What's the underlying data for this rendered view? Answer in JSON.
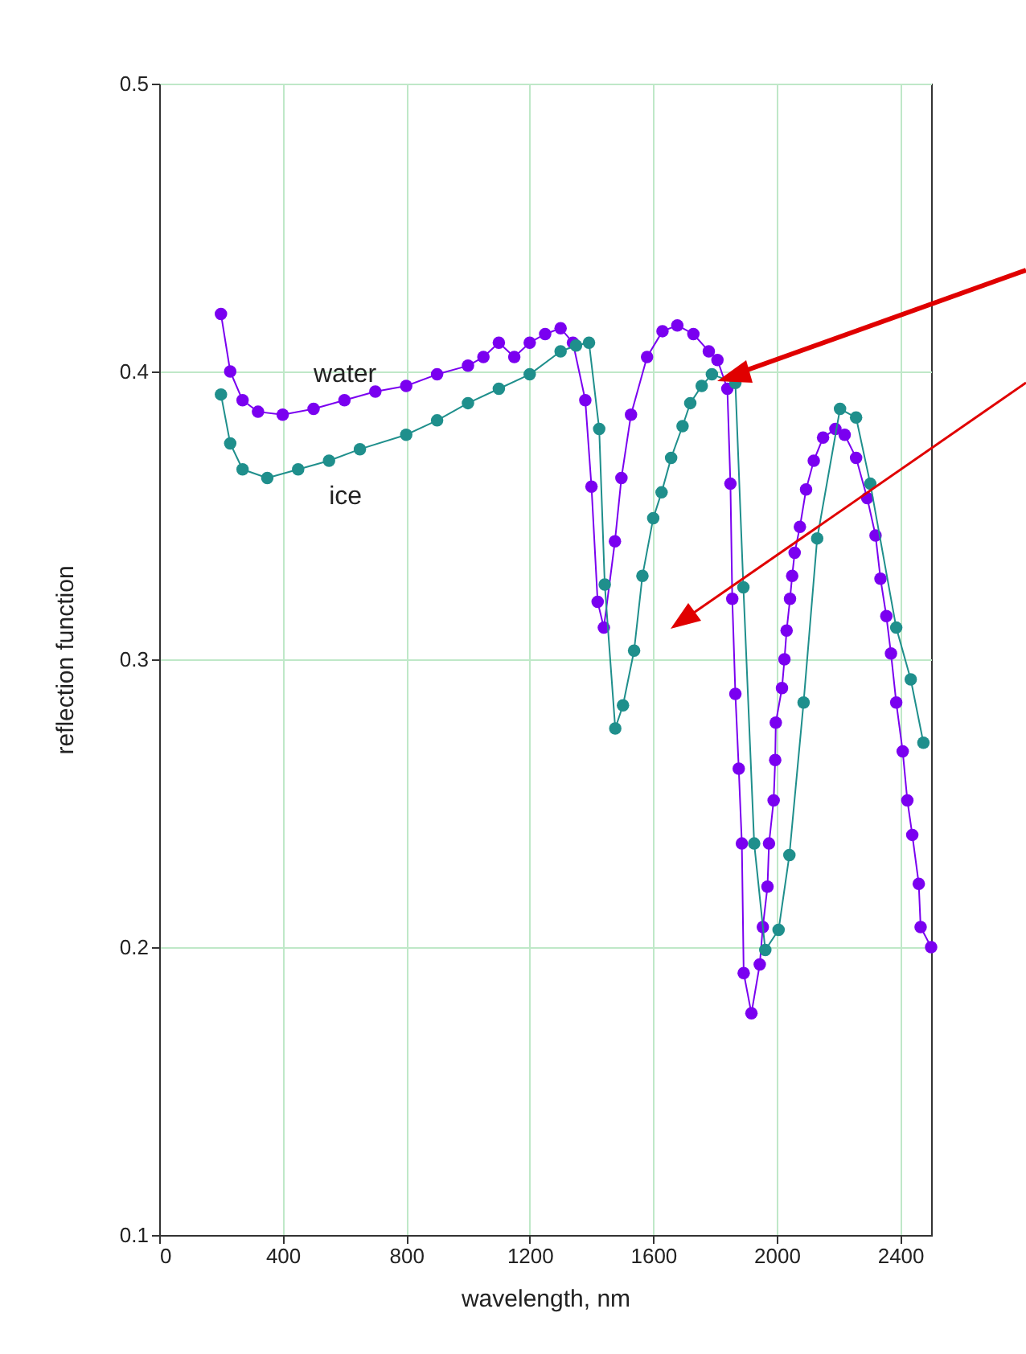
{
  "chart_data": {
    "type": "line",
    "xlabel": "wavelength, nm",
    "ylabel": "reflection function",
    "xlim": [
      0,
      2500
    ],
    "ylim": [
      0.1,
      0.5
    ],
    "xticks": [
      0,
      400,
      800,
      1200,
      1600,
      2000,
      2400
    ],
    "yticks": [
      0.1,
      0.2,
      0.3,
      0.4,
      0.5
    ],
    "grid": true,
    "marker": "circle",
    "line_style": "solid",
    "series": [
      {
        "name": "water",
        "color": "#7a00f0",
        "x": [
          200,
          230,
          270,
          320,
          400,
          500,
          600,
          700,
          800,
          900,
          1000,
          1050,
          1100,
          1150,
          1200,
          1250,
          1300,
          1340,
          1380,
          1400,
          1420,
          1440,
          1476,
          1497,
          1528,
          1580,
          1630,
          1678,
          1730,
          1780,
          1808,
          1840,
          1850,
          1856,
          1866,
          1877,
          1887,
          1893,
          1918,
          1945,
          1955,
          1970,
          1975,
          1990,
          1995,
          1997,
          2017,
          2025,
          2032,
          2043,
          2050,
          2058,
          2075,
          2095,
          2120,
          2150,
          2190,
          2220,
          2257,
          2293,
          2320,
          2336,
          2355,
          2370,
          2387,
          2408,
          2423,
          2439,
          2460,
          2466,
          2500
        ],
        "values": [
          0.42,
          0.4,
          0.39,
          0.386,
          0.385,
          0.387,
          0.39,
          0.393,
          0.395,
          0.399,
          0.402,
          0.405,
          0.41,
          0.405,
          0.41,
          0.413,
          0.415,
          0.41,
          0.39,
          0.36,
          0.32,
          0.311,
          0.341,
          0.363,
          0.385,
          0.405,
          0.414,
          0.416,
          0.413,
          0.407,
          0.404,
          0.394,
          0.361,
          0.321,
          0.288,
          0.262,
          0.236,
          0.191,
          0.177,
          0.194,
          0.207,
          0.221,
          0.236,
          0.251,
          0.265,
          0.278,
          0.29,
          0.3,
          0.31,
          0.321,
          0.329,
          0.337,
          0.346,
          0.359,
          0.369,
          0.377,
          0.38,
          0.378,
          0.37,
          0.356,
          0.343,
          0.328,
          0.315,
          0.302,
          0.285,
          0.268,
          0.251,
          0.239,
          0.222,
          0.207,
          0.2
        ]
      },
      {
        "name": "ice",
        "color": "#1f8f8c",
        "x": [
          200,
          230,
          270,
          350,
          450,
          550,
          650,
          800,
          900,
          1000,
          1100,
          1200,
          1300,
          1350,
          1392,
          1425,
          1443,
          1477,
          1502,
          1538,
          1565,
          1600,
          1627,
          1658,
          1695,
          1720,
          1757,
          1790,
          1866,
          1892,
          1927,
          1963,
          2006,
          2041,
          2087,
          2131,
          2205,
          2257,
          2303,
          2387,
          2434,
          2475
        ],
        "values": [
          0.392,
          0.375,
          0.366,
          0.363,
          0.366,
          0.369,
          0.373,
          0.378,
          0.383,
          0.389,
          0.394,
          0.399,
          0.407,
          0.409,
          0.41,
          0.38,
          0.326,
          0.276,
          0.284,
          0.303,
          0.329,
          0.349,
          0.358,
          0.37,
          0.381,
          0.389,
          0.395,
          0.399,
          0.396,
          0.325,
          0.236,
          0.199,
          0.206,
          0.232,
          0.285,
          0.342,
          0.387,
          0.384,
          0.361,
          0.311,
          0.293,
          0.271
        ]
      }
    ]
  }
}
